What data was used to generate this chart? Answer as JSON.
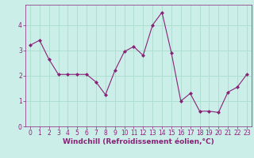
{
  "x": [
    0,
    1,
    2,
    3,
    4,
    5,
    6,
    7,
    8,
    9,
    10,
    11,
    12,
    13,
    14,
    15,
    16,
    17,
    18,
    19,
    20,
    21,
    22,
    23
  ],
  "y": [
    3.2,
    3.4,
    2.65,
    2.05,
    2.05,
    2.05,
    2.05,
    1.75,
    1.25,
    2.2,
    2.95,
    3.15,
    2.8,
    4.0,
    4.5,
    2.9,
    1.0,
    1.3,
    0.6,
    0.6,
    0.55,
    1.35,
    1.55,
    2.05
  ],
  "line_color": "#882277",
  "marker": "D",
  "marker_size": 2,
  "xlabel": "Windchill (Refroidissement éolien,°C)",
  "xlim": [
    -0.5,
    23.5
  ],
  "ylim": [
    0,
    4.8
  ],
  "yticks": [
    0,
    1,
    2,
    3,
    4
  ],
  "xticks": [
    0,
    1,
    2,
    3,
    4,
    5,
    6,
    7,
    8,
    9,
    10,
    11,
    12,
    13,
    14,
    15,
    16,
    17,
    18,
    19,
    20,
    21,
    22,
    23
  ],
  "grid_color": "#aaddcc",
  "bg_color": "#cceee8",
  "xlabel_color": "#882277",
  "tick_color": "#882277",
  "xlabel_fontsize": 6.5,
  "tick_fontsize": 5.5,
  "linewidth": 0.8
}
